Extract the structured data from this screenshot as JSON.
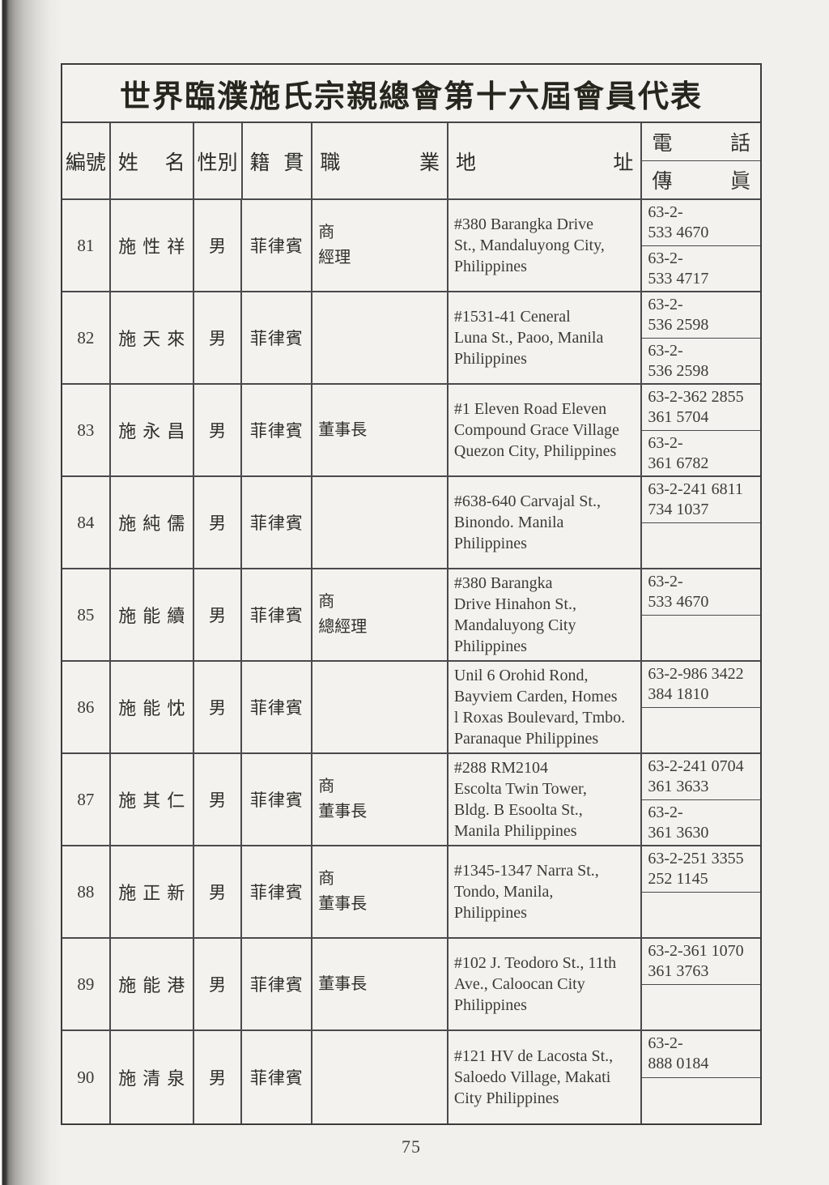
{
  "page_number": "75",
  "colors": {
    "page_background": "#f1f0ec",
    "ink": "#34342f",
    "table_border": "#4a4a4c",
    "scan_edge_dark": "#2e2e2c"
  },
  "table": {
    "title": "世界臨濮施氏宗親總會第十六屆會員代表",
    "header": {
      "id": "編號",
      "gender": "性別",
      "name": {
        "l": "姓",
        "r": "名"
      },
      "origin": {
        "l": "籍",
        "r": "貫"
      },
      "occupation": {
        "l": "職",
        "r": "業"
      },
      "address": {
        "l": "地",
        "r": "址"
      },
      "phone": {
        "l": "電",
        "r": "話"
      },
      "fax": {
        "l": "傳",
        "r": "眞"
      }
    },
    "rows": [
      {
        "id": "81",
        "name": "施性祥",
        "gender": "男",
        "origin": "菲律賓",
        "occupation": "商\n經理",
        "address": "#380 Barangka Drive\nSt., Mandaluyong City,\nPhilippines",
        "phone": "63-2-\n533 4670",
        "fax": "63-2-\n533 4717"
      },
      {
        "id": "82",
        "name": "施天來",
        "gender": "男",
        "origin": "菲律賓",
        "occupation": "",
        "address": "#1531-41 Ceneral\nLuna St., Paoo, Manila\nPhilippines",
        "phone": "63-2-\n536 2598",
        "fax": "63-2-\n536 2598"
      },
      {
        "id": "83",
        "name": "施永昌",
        "gender": "男",
        "origin": "菲律賓",
        "occupation": "董事長",
        "address": "#1 Eleven Road Eleven\nCompound Grace Village\nQuezon City, Philippines",
        "phone": "63-2-362 2855\n361 5704",
        "fax": "63-2-\n361 6782"
      },
      {
        "id": "84",
        "name": "施純儒",
        "gender": "男",
        "origin": "菲律賓",
        "occupation": "",
        "address": "#638-640 Carvajal St.,\nBinondo. Manila\nPhilippines",
        "phone": "63-2-241 6811\n734 1037",
        "fax": ""
      },
      {
        "id": "85",
        "name": "施能續",
        "gender": "男",
        "origin": "菲律賓",
        "occupation": "商\n總經理",
        "address": "#380 Barangka\nDrive Hinahon St.,\nMandaluyong City\nPhilippines",
        "phone": "63-2-\n533 4670",
        "fax": ""
      },
      {
        "id": "86",
        "name": "施能忱",
        "gender": "男",
        "origin": "菲律賓",
        "occupation": "",
        "address": "Unil 6 Orohid Rond,\nBayviem Carden, Homes\nl Roxas Boulevard, Tmbo.\nParanaque Philippines",
        "phone": "63-2-986 3422\n384 1810",
        "fax": ""
      },
      {
        "id": "87",
        "name": "施其仁",
        "gender": "男",
        "origin": "菲律賓",
        "occupation": "商\n董事長",
        "address": "#288 RM2104\nEscolta Twin Tower,\nBldg. B Esoolta St.,\nManila Philippines",
        "phone": "63-2-241 0704\n361 3633",
        "fax": "63-2-\n361 3630"
      },
      {
        "id": "88",
        "name": "施正新",
        "gender": "男",
        "origin": "菲律賓",
        "occupation": "商\n董事長",
        "address": "#1345-1347 Narra St.,\nTondo, Manila,\nPhilippines",
        "phone": "63-2-251 3355\n252 1145",
        "fax": ""
      },
      {
        "id": "89",
        "name": "施能港",
        "gender": "男",
        "origin": "菲律賓",
        "occupation": "董事長",
        "address": "#102 J. Teodoro St., 11th\nAve., Caloocan City\nPhilippines",
        "phone": "63-2-361 1070\n361 3763",
        "fax": ""
      },
      {
        "id": "90",
        "name": "施清泉",
        "gender": "男",
        "origin": "菲律賓",
        "occupation": "",
        "address": "#121 HV de Lacosta St.,\nSaloedo Village, Makati\nCity Philippines",
        "phone": "63-2-\n888 0184",
        "fax": ""
      }
    ]
  }
}
